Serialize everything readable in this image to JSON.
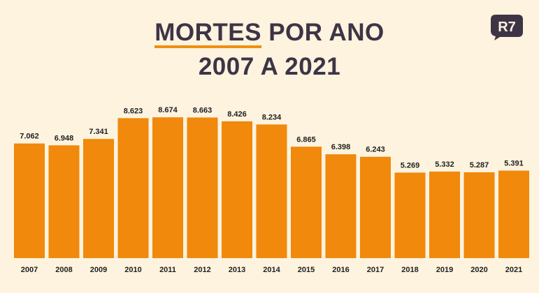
{
  "title": {
    "highlight": "MORTES",
    "rest": " POR ANO",
    "line2": "2007 A 2021"
  },
  "logo": {
    "text": "R7",
    "color": "#3d3546"
  },
  "colors": {
    "bar": "#f0890c",
    "accent": "#f0900f",
    "background": "#fdf3df",
    "text": "#3d3546"
  },
  "chart_data": {
    "type": "bar",
    "title": "MORTES POR ANO 2007 A 2021",
    "categories": [
      "2007",
      "2008",
      "2009",
      "2010",
      "2011",
      "2012",
      "2013",
      "2014",
      "2015",
      "2016",
      "2017",
      "2018",
      "2019",
      "2020",
      "2021"
    ],
    "values": [
      7062,
      6948,
      7341,
      8623,
      8674,
      8663,
      8426,
      8234,
      6865,
      6398,
      6243,
      5269,
      5332,
      5287,
      5391
    ],
    "value_labels": [
      "7.062",
      "6.948",
      "7.341",
      "8.623",
      "8.674",
      "8.663",
      "8.426",
      "8.234",
      "6.865",
      "6.398",
      "6.243",
      "5.269",
      "5.332",
      "5.287",
      "5.391"
    ],
    "xlabel": "",
    "ylabel": "",
    "grid": false,
    "legend": "none"
  }
}
